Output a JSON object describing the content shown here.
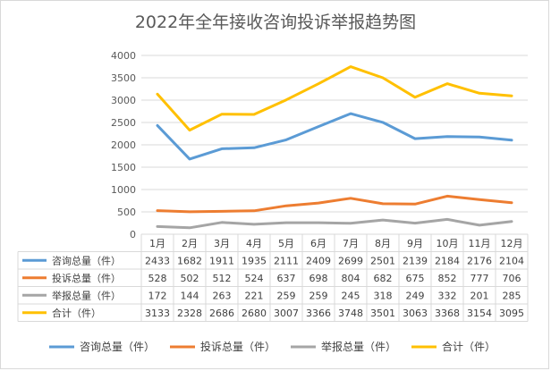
{
  "chart_data": {
    "type": "line",
    "title": "2022年全年接收咨询投诉举报趋势图",
    "categories": [
      "1月",
      "2月",
      "3月",
      "4月",
      "5月",
      "6月",
      "7月",
      "8月",
      "9月",
      "10月",
      "11月",
      "12月"
    ],
    "ylim": [
      0,
      4000
    ],
    "yticks": [
      0,
      500,
      1000,
      1500,
      2000,
      2500,
      3000,
      3500,
      4000
    ],
    "grid": true,
    "legend_position": "bottom",
    "data_table": true,
    "series": [
      {
        "name": "咨询总量（件）",
        "color": "#5b9bd5",
        "values": [
          2433,
          1682,
          1911,
          1935,
          2111,
          2409,
          2699,
          2501,
          2139,
          2184,
          2176,
          2104
        ]
      },
      {
        "name": "投诉总量（件）",
        "color": "#ed7d31",
        "values": [
          528,
          502,
          512,
          524,
          637,
          698,
          804,
          682,
          675,
          852,
          777,
          706
        ]
      },
      {
        "name": "举报总量（件）",
        "color": "#a5a5a5",
        "values": [
          172,
          144,
          263,
          221,
          259,
          259,
          245,
          318,
          249,
          332,
          201,
          285
        ]
      },
      {
        "name": "合计（件）",
        "color": "#ffc000",
        "values": [
          3133,
          2328,
          2686,
          2680,
          3007,
          3366,
          3748,
          3501,
          3063,
          3368,
          3154,
          3095
        ]
      }
    ]
  }
}
